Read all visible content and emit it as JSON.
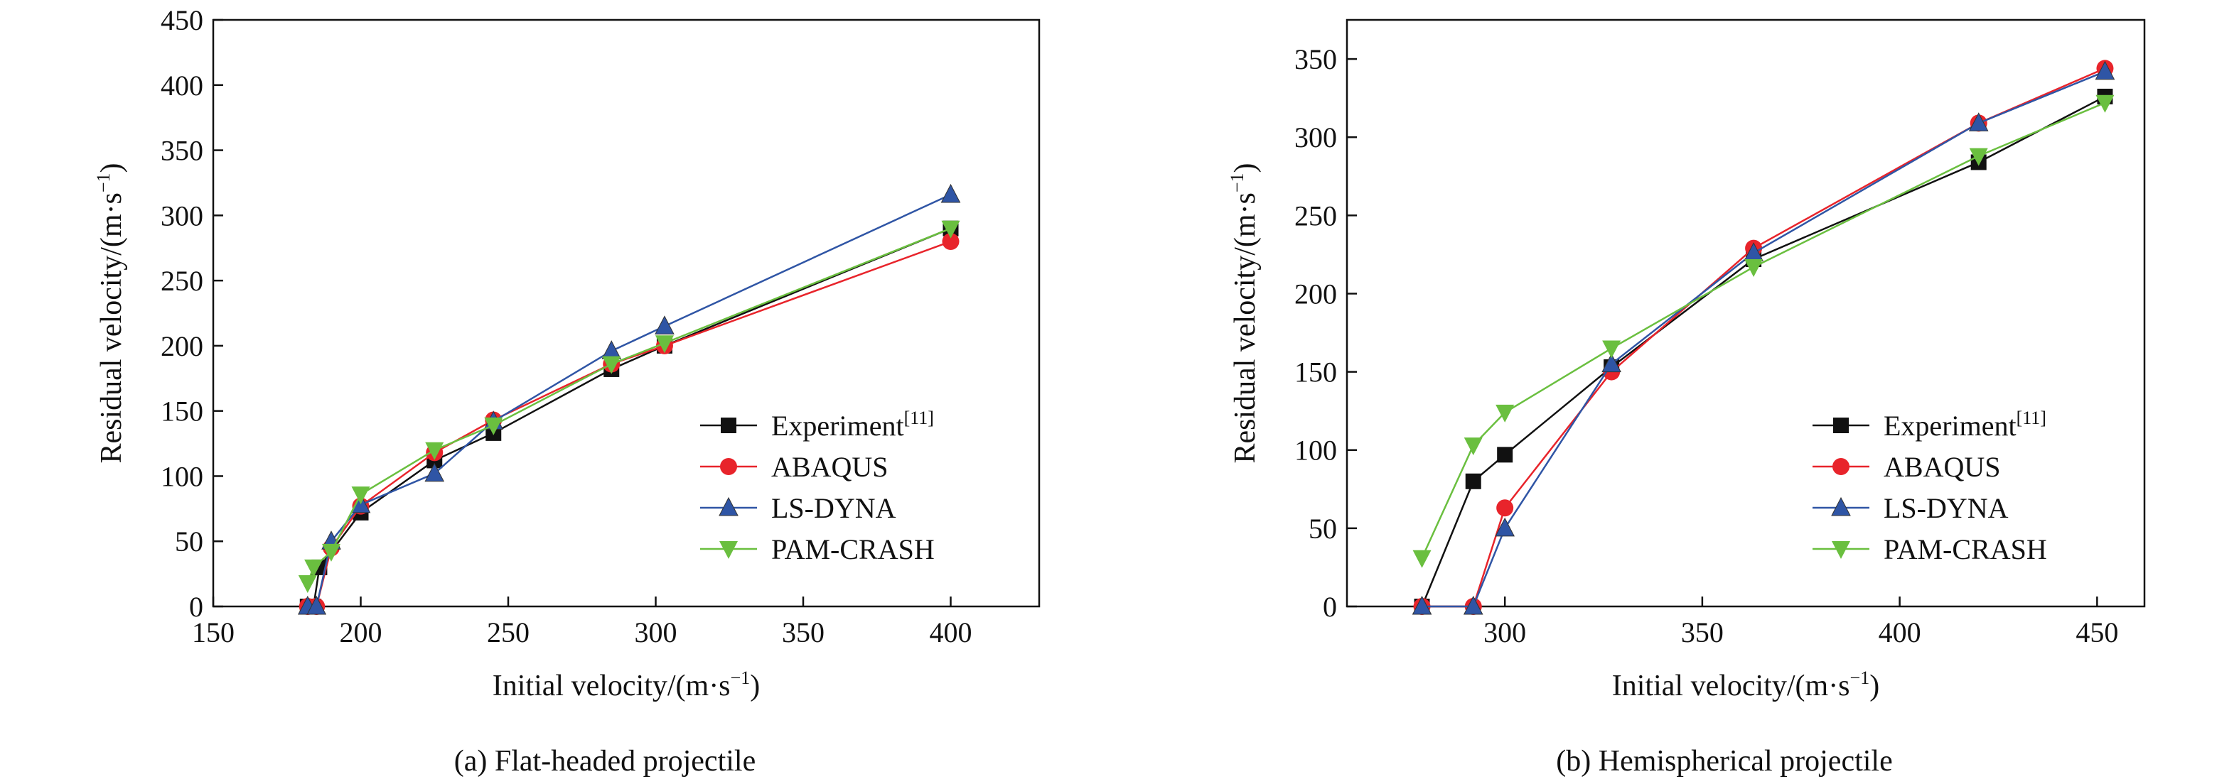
{
  "colors": {
    "experiment": "#111111",
    "abaqus": "#e8242b",
    "lsdyna": "#2f55a5",
    "pamcrash": "#6abf3f",
    "axis": "#111111"
  },
  "chart_data": [
    {
      "type": "line",
      "caption": "(a) Flat-headed projectile",
      "xlabel": "Initial velocity/(m·s",
      "xlabel_sup": "−1",
      "xlabel_end": ")",
      "ylabel": "Residual velocity/(m·s",
      "ylabel_sup": "−1",
      "ylabel_end": ")",
      "xlim": [
        150,
        430
      ],
      "ylim": [
        0,
        450
      ],
      "xticks": [
        150,
        200,
        250,
        300,
        350,
        400
      ],
      "yticks": [
        0,
        50,
        100,
        150,
        200,
        250,
        300,
        350,
        400,
        450
      ],
      "legend_position": "bottom-right",
      "series": [
        {
          "key": "experiment",
          "name": "Experiment",
          "name_sup": "[11]",
          "marker": "square",
          "x": [
            182,
            184,
            186,
            200,
            225,
            245,
            285,
            303,
            400
          ],
          "y": [
            0,
            0,
            30,
            72,
            112,
            133,
            182,
            200,
            290
          ]
        },
        {
          "key": "abaqus",
          "name": "ABAQUS",
          "name_sup": "",
          "marker": "circle",
          "x": [
            182,
            185,
            190,
            200,
            225,
            245,
            285,
            303,
            400
          ],
          "y": [
            0,
            0,
            45,
            77,
            118,
            143,
            186,
            200,
            280
          ]
        },
        {
          "key": "lsdyna",
          "name": "LS-DYNA",
          "name_sup": "",
          "marker": "triangle-up",
          "x": [
            182,
            185,
            190,
            200,
            225,
            245,
            285,
            303,
            400
          ],
          "y": [
            0,
            0,
            50,
            78,
            102,
            142,
            196,
            215,
            316
          ]
        },
        {
          "key": "pamcrash",
          "name": "PAM-CRASH",
          "name_sup": "",
          "marker": "triangle-down",
          "x": [
            182,
            184,
            190,
            200,
            225,
            245,
            285,
            303,
            400
          ],
          "y": [
            18,
            30,
            42,
            86,
            120,
            139,
            186,
            202,
            290
          ]
        }
      ]
    },
    {
      "type": "line",
      "caption": "(b) Hemispherical projectile",
      "xlabel": "Initial velocity/(m·s",
      "xlabel_sup": "−1",
      "xlabel_end": ")",
      "ylabel": "Residual velocity/(m·s",
      "ylabel_sup": "−1",
      "ylabel_end": ")",
      "xlim": [
        260,
        462
      ],
      "ylim": [
        0,
        375
      ],
      "xticks": [
        300,
        350,
        400,
        450
      ],
      "yticks": [
        0,
        50,
        100,
        150,
        200,
        250,
        300,
        350
      ],
      "legend_position": "bottom-right",
      "series": [
        {
          "key": "experiment",
          "name": "Experiment",
          "name_sup": "[11]",
          "marker": "square",
          "x": [
            279,
            292,
            300,
            327,
            363,
            420,
            452
          ],
          "y": [
            0,
            80,
            97,
            153,
            222,
            284,
            326
          ]
        },
        {
          "key": "abaqus",
          "name": "ABAQUS",
          "name_sup": "",
          "marker": "circle",
          "x": [
            279,
            292,
            300,
            327,
            363,
            420,
            452
          ],
          "y": [
            0,
            0,
            63,
            150,
            229,
            309,
            344
          ]
        },
        {
          "key": "lsdyna",
          "name": "LS-DYNA",
          "name_sup": "",
          "marker": "triangle-up",
          "x": [
            279,
            292,
            300,
            327,
            363,
            420,
            452
          ],
          "y": [
            0,
            0,
            50,
            155,
            226,
            309,
            342
          ]
        },
        {
          "key": "pamcrash",
          "name": "PAM-CRASH",
          "name_sup": "",
          "marker": "triangle-down",
          "x": [
            279,
            292,
            300,
            327,
            363,
            420,
            452
          ],
          "y": [
            31,
            103,
            124,
            165,
            217,
            288,
            322
          ]
        }
      ]
    }
  ]
}
